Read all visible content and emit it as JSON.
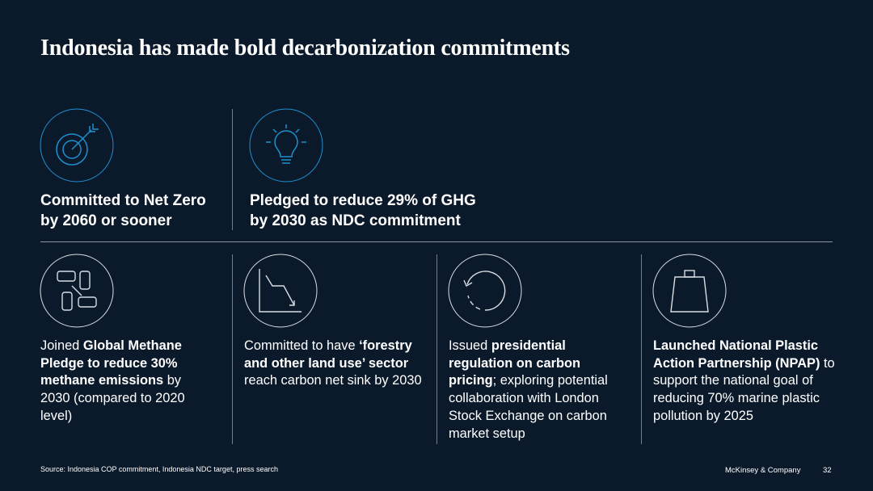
{
  "title": "Indonesia has made bold decarbonization commitments",
  "colors": {
    "background": "#0b1a2b",
    "accent": "#1f8fd0",
    "outline": "#d8dde3"
  },
  "top_items": [
    {
      "icon": "target-arrow-icon",
      "text": "Committed to Net Zero by 2060 or sooner"
    },
    {
      "icon": "lightbulb-icon",
      "text": "Pledged to reduce 29% of GHG by 2030 as NDC commitment"
    }
  ],
  "bottom_items": [
    {
      "icon": "joined-hands-icon",
      "segments": [
        {
          "text": "Joined ",
          "bold": false
        },
        {
          "text": "Global Methane Pledge to reduce 30% methane emissions",
          "bold": true
        },
        {
          "text": " by 2030 (compared to 2020 level)",
          "bold": false
        }
      ]
    },
    {
      "icon": "declining-chart-icon",
      "segments": [
        {
          "text": "Committed to have ",
          "bold": false
        },
        {
          "text": "‘forestry and other land use’ sector",
          "bold": true
        },
        {
          "text": " reach carbon net sink by 2030",
          "bold": false
        }
      ]
    },
    {
      "icon": "cycle-arrow-icon",
      "segments": [
        {
          "text": "Issued ",
          "bold": false
        },
        {
          "text": "presidential regulation on carbon pricing",
          "bold": true
        },
        {
          "text": "; exploring potential collaboration with London Stock Exchange on carbon market setup",
          "bold": false
        }
      ]
    },
    {
      "icon": "weight-icon",
      "segments": [
        {
          "text": "Launched National Plastic Action Partnership (NPAP)",
          "bold": true
        },
        {
          "text": " to support the national goal of reducing 70% marine plastic pollution by 2025",
          "bold": false
        }
      ]
    }
  ],
  "footer": {
    "source": "Source: Indonesia COP commitment, Indonesia NDC target, press search",
    "brand": "McKinsey & Company",
    "page": "32"
  }
}
